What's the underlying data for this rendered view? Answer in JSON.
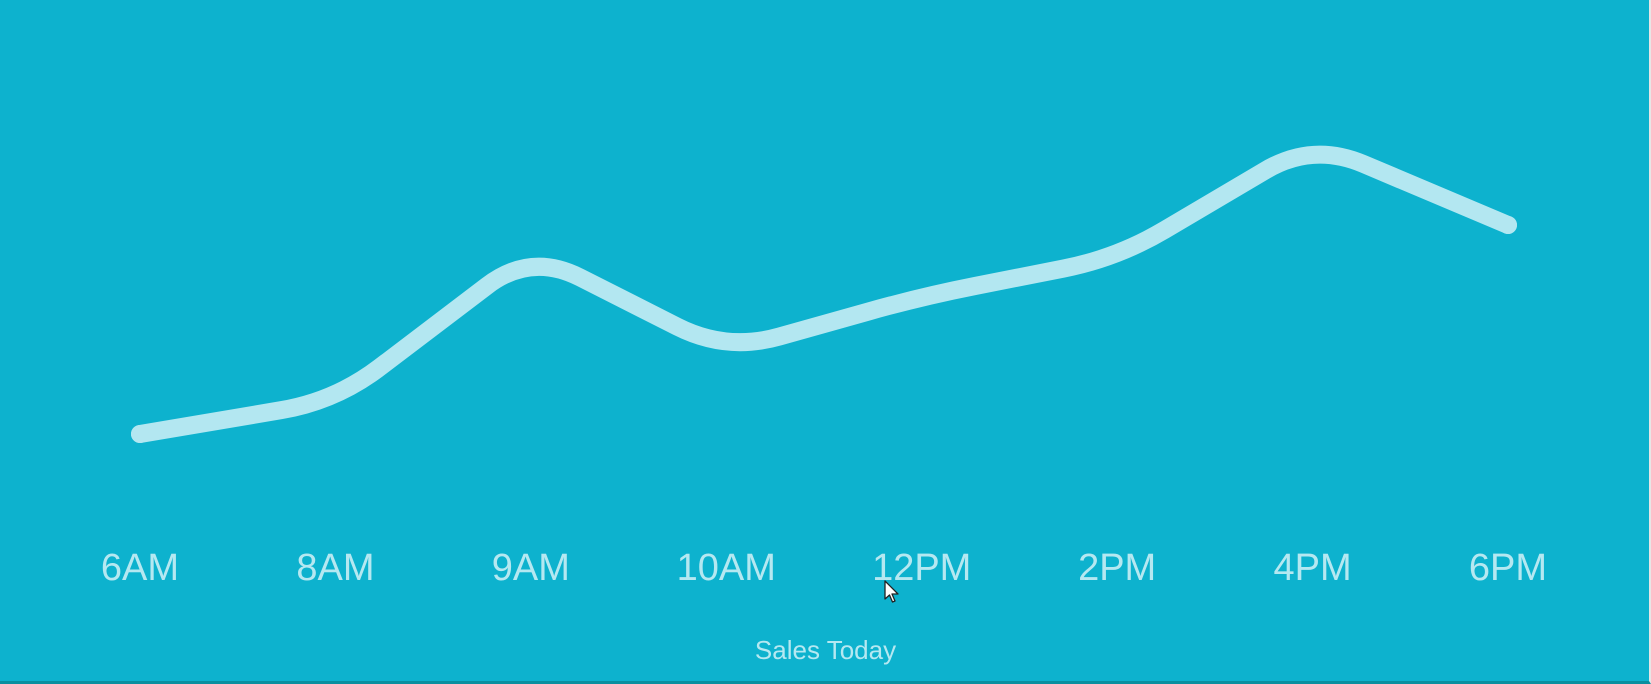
{
  "chart_data": {
    "type": "line",
    "title": "",
    "xlabel": "Sales Today",
    "ylabel": "",
    "categories": [
      "6AM",
      "8AM",
      "9AM",
      "10AM",
      "12PM",
      "2PM",
      "4PM",
      "6PM"
    ],
    "series": [
      {
        "values": [
          12,
          18,
          45,
          27,
          37,
          44,
          65,
          50
        ]
      }
    ],
    "ylim": [
      0,
      80
    ],
    "grid": false,
    "line_color": "#b3e7f1",
    "background_color": "#0db2ce"
  }
}
